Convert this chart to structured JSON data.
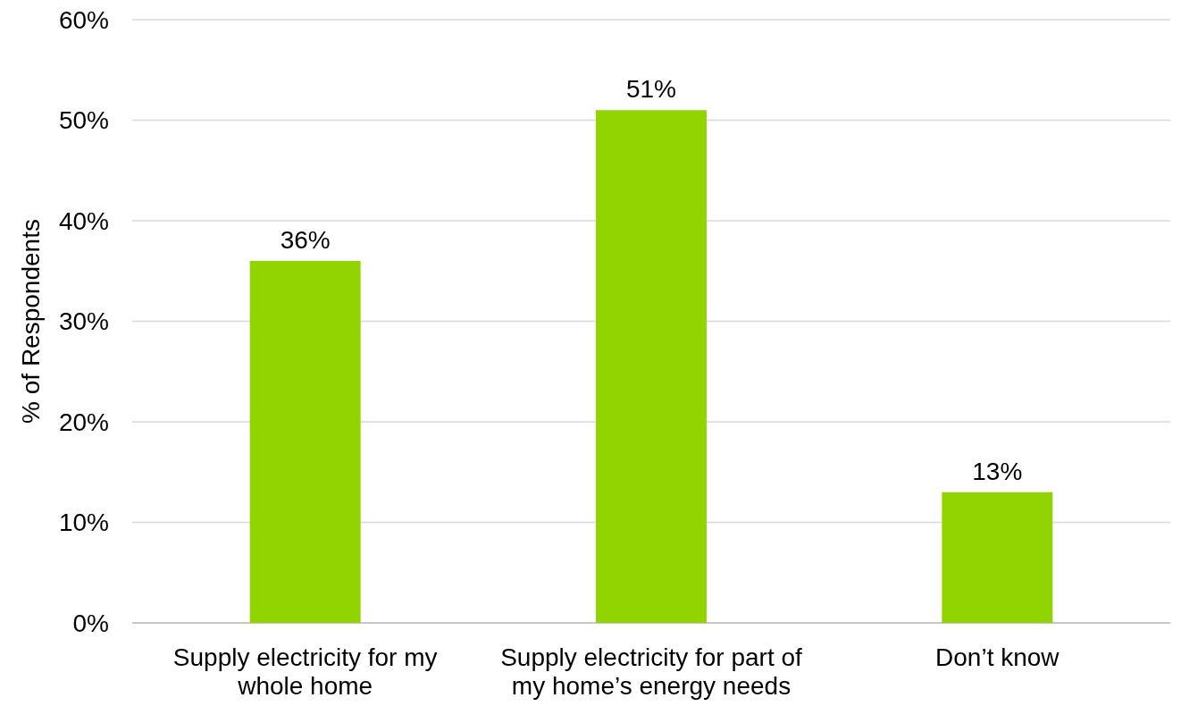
{
  "chart_data": {
    "type": "bar",
    "ylabel": "% of Respondents",
    "categories": [
      "Supply electricity for my whole home",
      "Supply electricity for part of my home’s energy needs",
      "Don’t know"
    ],
    "values": [
      36,
      51,
      13
    ],
    "color": "#92d400",
    "value_labels": [
      "36%",
      "51%",
      "13%"
    ],
    "ylim": [
      0,
      60
    ],
    "yticks": [
      {
        "value": 0,
        "label": "0%"
      },
      {
        "value": 10,
        "label": "10%"
      },
      {
        "value": 20,
        "label": "20%"
      },
      {
        "value": 30,
        "label": "30%"
      },
      {
        "value": 40,
        "label": "40%"
      },
      {
        "value": 50,
        "label": "50%"
      },
      {
        "value": 60,
        "label": "60%"
      }
    ],
    "grid": "y"
  }
}
